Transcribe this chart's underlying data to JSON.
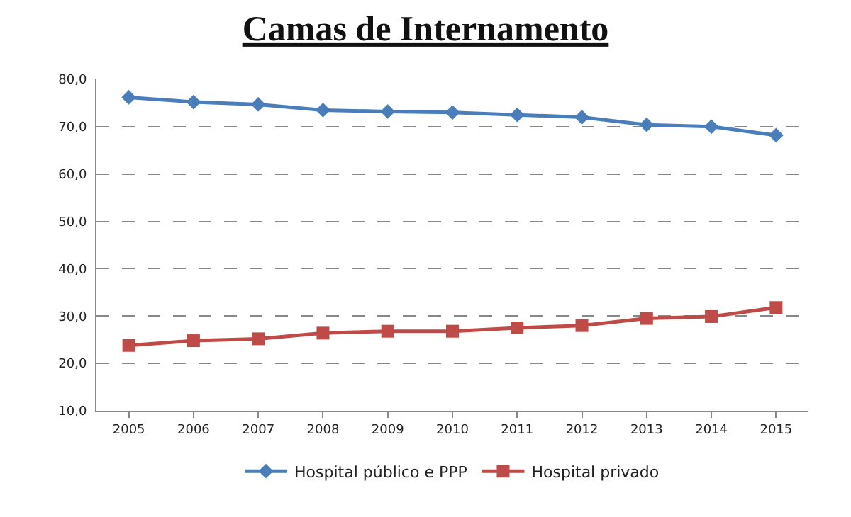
{
  "chart_data": {
    "type": "line",
    "title": "Camas de Internamento",
    "categories": [
      "2005",
      "2006",
      "2007",
      "2008",
      "2009",
      "2010",
      "2011",
      "2012",
      "2013",
      "2014",
      "2015"
    ],
    "series": [
      {
        "name": "Hospital público e PPP",
        "color": "#4a7ebb",
        "marker": "diamond",
        "values": [
          76.2,
          75.2,
          74.7,
          73.5,
          73.2,
          73.0,
          72.5,
          72.0,
          70.4,
          70.0,
          68.2
        ]
      },
      {
        "name": "Hospital privado",
        "color": "#be4b48",
        "marker": "square",
        "values": [
          23.8,
          24.8,
          25.2,
          26.4,
          26.8,
          26.8,
          27.5,
          28.0,
          29.5,
          29.9,
          31.8
        ]
      }
    ],
    "ylim": [
      10,
      80
    ],
    "yticks": [
      {
        "value": 10,
        "label": "10,0"
      },
      {
        "value": 20,
        "label": "20,0"
      },
      {
        "value": 30,
        "label": "30,0"
      },
      {
        "value": 40,
        "label": "40,0"
      },
      {
        "value": 50,
        "label": "50,0"
      },
      {
        "value": 60,
        "label": "60,0"
      },
      {
        "value": 70,
        "label": "70,0"
      },
      {
        "value": 80,
        "label": "80,0"
      }
    ],
    "grid": "y",
    "legend": "bottom"
  }
}
